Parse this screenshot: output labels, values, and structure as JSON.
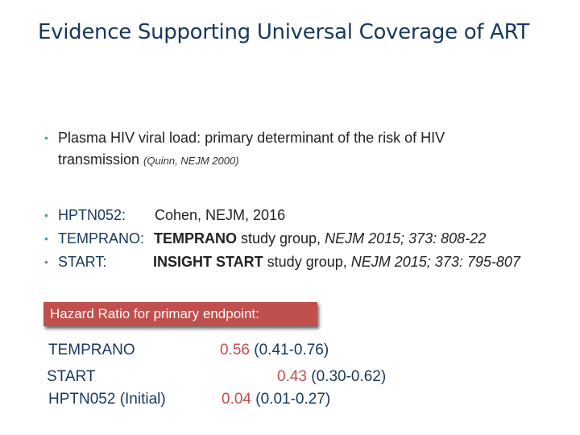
{
  "title": "Evidence Supporting Universal Coverage of ART",
  "bullet_glyph": "•",
  "intro": {
    "text": "Plasma HIV viral load: primary determinant of the risk of HIV",
    "text_cont": "transmission",
    "ref": "(Quinn, NEJM 2000)"
  },
  "trials": [
    {
      "name": "HPTN052:",
      "source_plain": "Cohen, NEJM, 2016",
      "source_bold": "",
      "source_after": "",
      "source_ital": ""
    },
    {
      "name": "TEMPRANO:",
      "source_plain": "",
      "source_bold": "TEMPRANO",
      "source_after": " study group, ",
      "source_ital": "NEJM 2015; 373: 808-22"
    },
    {
      "name": "START:",
      "source_plain": "",
      "source_bold": "INSIGHT START",
      "source_after": " study group, ",
      "source_ital": "NEJM 2015; 373: 795-807"
    }
  ],
  "hazard_box": {
    "label": "Hazard Ratio for primary endpoint:"
  },
  "hazard_rows": [
    {
      "name": "TEMPRANO",
      "value": "0.56",
      "ci": "(0.41-0.76)"
    },
    {
      "name": "START",
      "value": "0.43",
      "ci": "(0.30-0.62)"
    },
    {
      "name": "HPTN052 (Initial)",
      "value": "0.04",
      "ci": "(0.01-0.27)"
    }
  ],
  "colors": {
    "title": "#17375e",
    "accent_red": "#c0504d",
    "bullet": "#4a9fb3"
  }
}
